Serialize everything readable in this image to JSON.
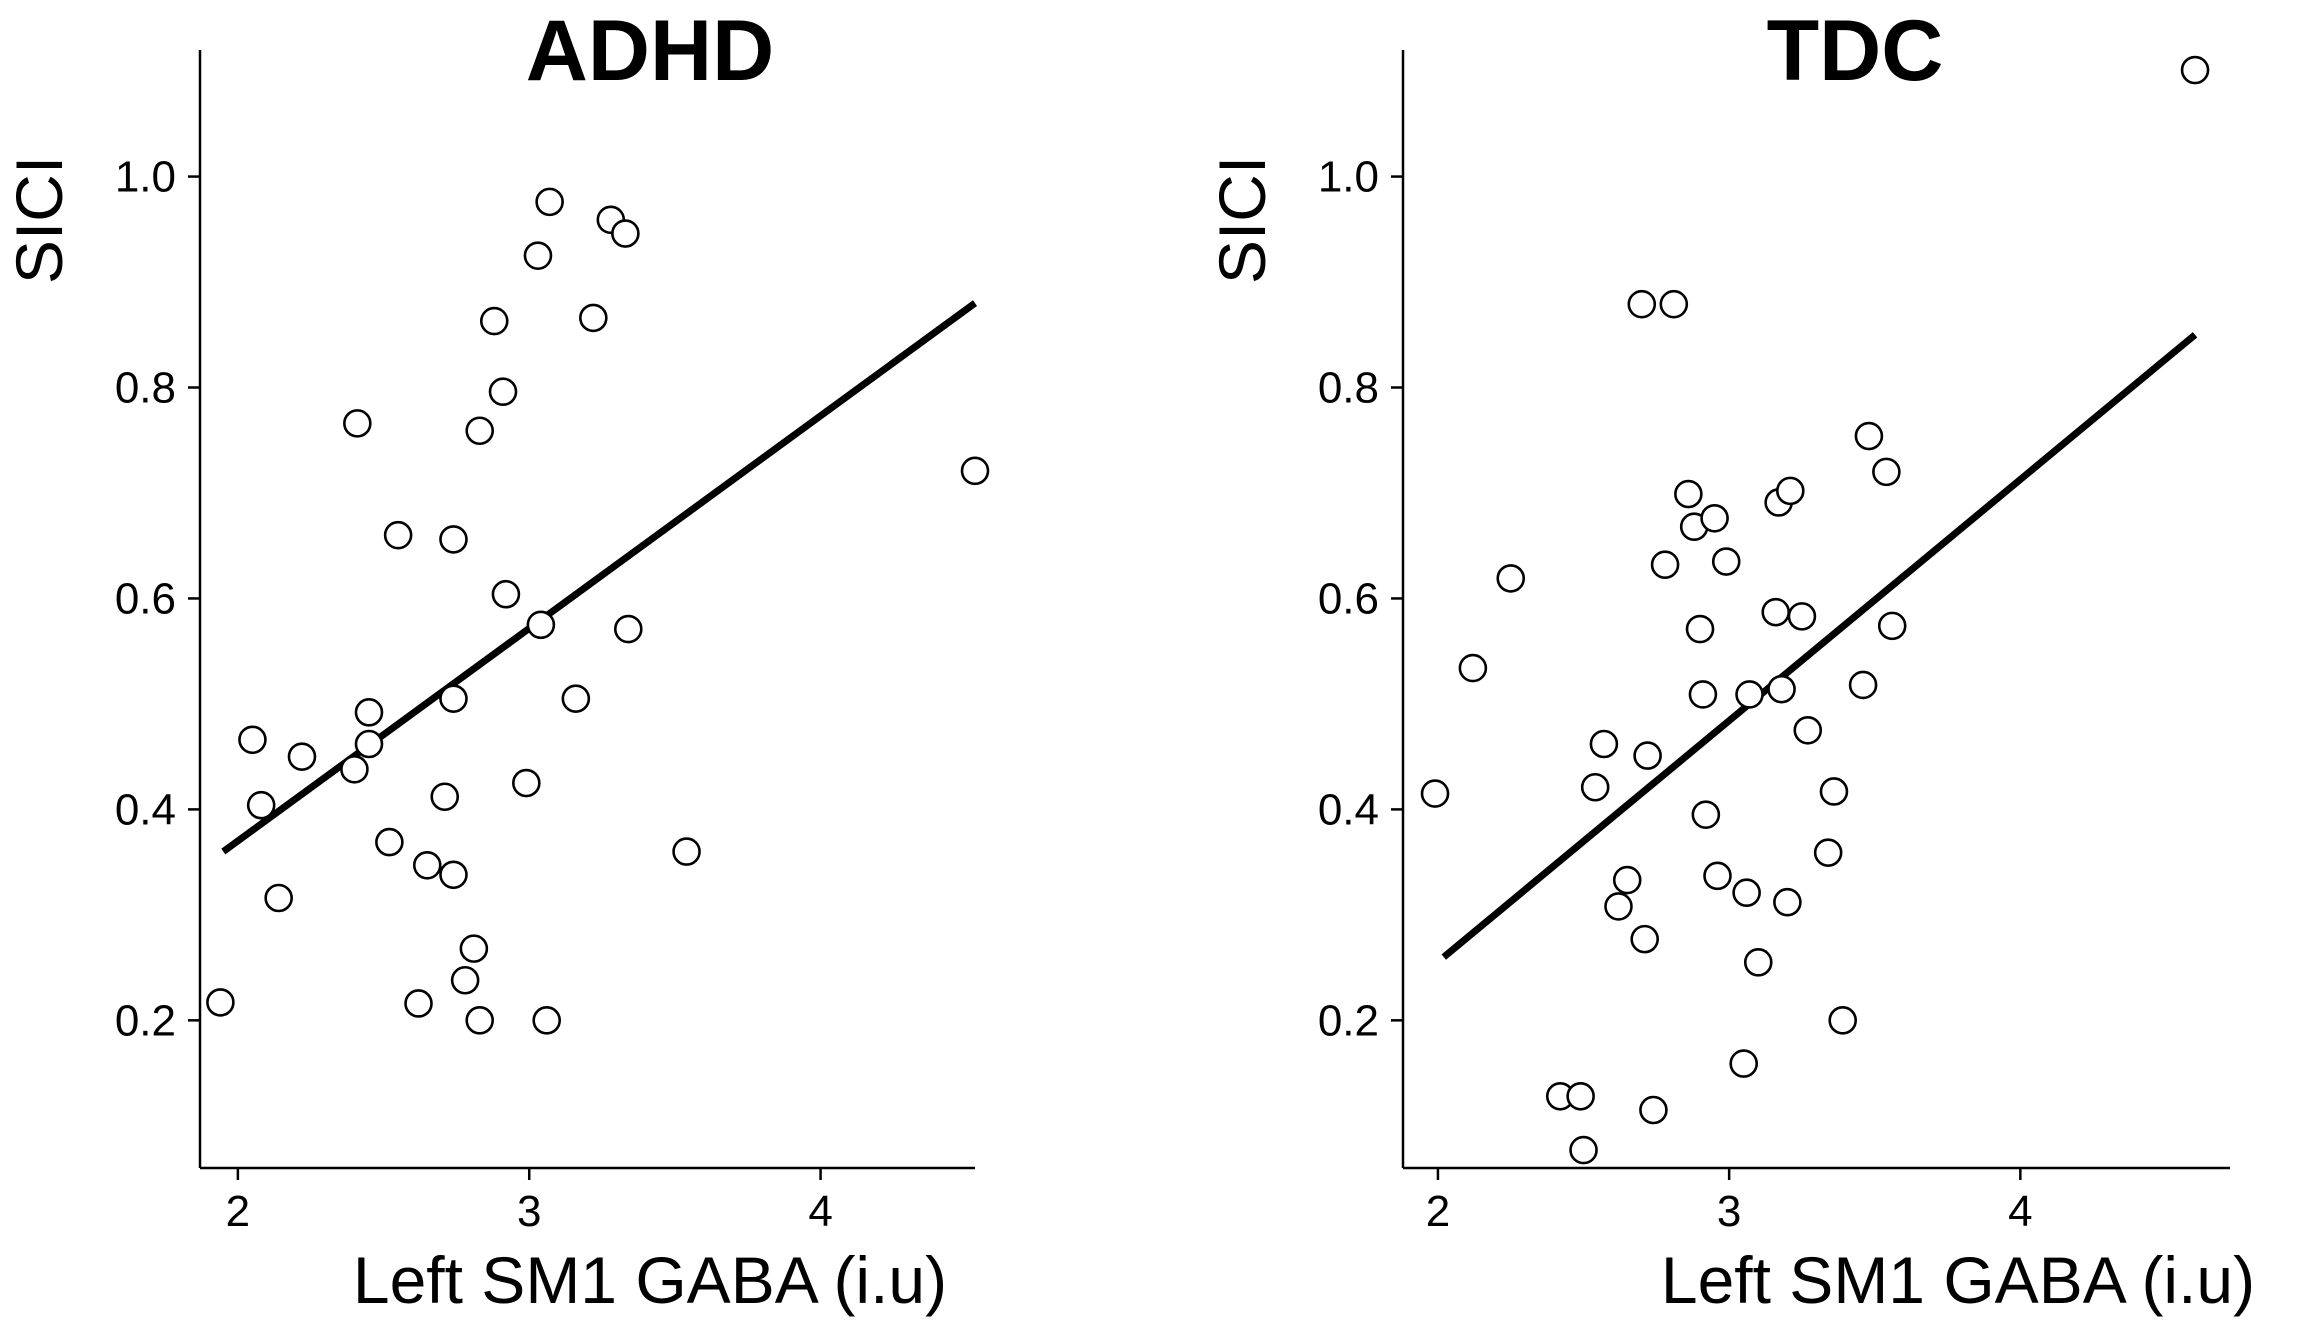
{
  "chart_data": [
    {
      "type": "scatter",
      "title": "ADHD",
      "xlabel": "Left SM1 GABA (i.u)",
      "ylabel": "SICI",
      "xlim": [
        1.87,
        4.53
      ],
      "ylim": [
        0.06,
        1.12
      ],
      "xticks": [
        2,
        3,
        4
      ],
      "xtick_labels": [
        "2",
        "3",
        "4"
      ],
      "yticks": [
        0.2,
        0.4,
        0.6,
        0.8,
        1.0
      ],
      "ytick_labels": [
        "0.2",
        "0.4",
        "0.6",
        "0.8",
        "1.0"
      ],
      "fit_line": {
        "x": [
          1.95,
          4.53
        ],
        "y": [
          0.36,
          0.88
        ]
      },
      "points": [
        {
          "x": 1.94,
          "y": 0.217
        },
        {
          "x": 2.05,
          "y": 0.466
        },
        {
          "x": 2.08,
          "y": 0.404
        },
        {
          "x": 2.14,
          "y": 0.316
        },
        {
          "x": 2.22,
          "y": 0.45
        },
        {
          "x": 2.4,
          "y": 0.438
        },
        {
          "x": 2.41,
          "y": 0.766
        },
        {
          "x": 2.45,
          "y": 0.492
        },
        {
          "x": 2.45,
          "y": 0.462
        },
        {
          "x": 2.52,
          "y": 0.369
        },
        {
          "x": 2.55,
          "y": 0.66
        },
        {
          "x": 2.62,
          "y": 0.216
        },
        {
          "x": 2.65,
          "y": 0.347
        },
        {
          "x": 2.71,
          "y": 0.412
        },
        {
          "x": 2.74,
          "y": 0.656
        },
        {
          "x": 2.74,
          "y": 0.505
        },
        {
          "x": 2.74,
          "y": 0.338
        },
        {
          "x": 2.78,
          "y": 0.238
        },
        {
          "x": 2.81,
          "y": 0.268
        },
        {
          "x": 2.83,
          "y": 0.759
        },
        {
          "x": 2.83,
          "y": 0.2
        },
        {
          "x": 2.88,
          "y": 0.863
        },
        {
          "x": 2.91,
          "y": 0.796
        },
        {
          "x": 2.92,
          "y": 0.604
        },
        {
          "x": 2.99,
          "y": 0.425
        },
        {
          "x": 3.03,
          "y": 0.925
        },
        {
          "x": 3.04,
          "y": 0.575
        },
        {
          "x": 3.06,
          "y": 0.2
        },
        {
          "x": 3.07,
          "y": 0.976
        },
        {
          "x": 3.16,
          "y": 0.505
        },
        {
          "x": 3.22,
          "y": 0.866
        },
        {
          "x": 3.28,
          "y": 0.959
        },
        {
          "x": 3.33,
          "y": 0.946
        },
        {
          "x": 3.34,
          "y": 0.571
        },
        {
          "x": 3.54,
          "y": 0.36
        },
        {
          "x": 4.53,
          "y": 0.721
        }
      ]
    },
    {
      "type": "scatter",
      "title": "TDC",
      "xlabel": "Left SM1 GABA (i.u)",
      "ylabel": "SICI",
      "xlim": [
        1.88,
        4.72
      ],
      "ylim": [
        0.06,
        1.12
      ],
      "xticks": [
        2,
        3,
        4
      ],
      "xtick_labels": [
        "2",
        "3",
        "4"
      ],
      "yticks": [
        0.2,
        0.4,
        0.6,
        0.8,
        1.0
      ],
      "ytick_labels": [
        "0.2",
        "0.4",
        "0.6",
        "0.8",
        "1.0"
      ],
      "fit_line": {
        "x": [
          2.02,
          4.6
        ],
        "y": [
          0.26,
          0.85
        ]
      },
      "points": [
        {
          "x": 1.99,
          "y": 0.415
        },
        {
          "x": 2.12,
          "y": 0.534
        },
        {
          "x": 2.25,
          "y": 0.619
        },
        {
          "x": 2.42,
          "y": 0.128
        },
        {
          "x": 2.49,
          "y": 0.128
        },
        {
          "x": 2.5,
          "y": 0.077
        },
        {
          "x": 2.54,
          "y": 0.421
        },
        {
          "x": 2.57,
          "y": 0.462
        },
        {
          "x": 2.62,
          "y": 0.308
        },
        {
          "x": 2.65,
          "y": 0.333
        },
        {
          "x": 2.7,
          "y": 0.879
        },
        {
          "x": 2.71,
          "y": 0.277
        },
        {
          "x": 2.72,
          "y": 0.451
        },
        {
          "x": 2.74,
          "y": 0.115
        },
        {
          "x": 2.78,
          "y": 0.632
        },
        {
          "x": 2.81,
          "y": 0.879
        },
        {
          "x": 2.86,
          "y": 0.699
        },
        {
          "x": 2.88,
          "y": 0.668
        },
        {
          "x": 2.9,
          "y": 0.571
        },
        {
          "x": 2.91,
          "y": 0.509
        },
        {
          "x": 2.92,
          "y": 0.395
        },
        {
          "x": 2.95,
          "y": 0.676
        },
        {
          "x": 2.96,
          "y": 0.337
        },
        {
          "x": 2.99,
          "y": 0.635
        },
        {
          "x": 3.05,
          "y": 0.159
        },
        {
          "x": 3.06,
          "y": 0.321
        },
        {
          "x": 3.07,
          "y": 0.509
        },
        {
          "x": 3.1,
          "y": 0.255
        },
        {
          "x": 3.16,
          "y": 0.587
        },
        {
          "x": 3.17,
          "y": 0.691
        },
        {
          "x": 3.18,
          "y": 0.514
        },
        {
          "x": 3.2,
          "y": 0.312
        },
        {
          "x": 3.21,
          "y": 0.702
        },
        {
          "x": 3.25,
          "y": 0.583
        },
        {
          "x": 3.27,
          "y": 0.475
        },
        {
          "x": 3.34,
          "y": 0.359
        },
        {
          "x": 3.36,
          "y": 0.417
        },
        {
          "x": 3.39,
          "y": 0.2
        },
        {
          "x": 3.46,
          "y": 0.518
        },
        {
          "x": 3.48,
          "y": 0.754
        },
        {
          "x": 3.54,
          "y": 0.72
        },
        {
          "x": 3.56,
          "y": 0.574
        },
        {
          "x": 4.6,
          "y": 1.101
        }
      ]
    }
  ]
}
